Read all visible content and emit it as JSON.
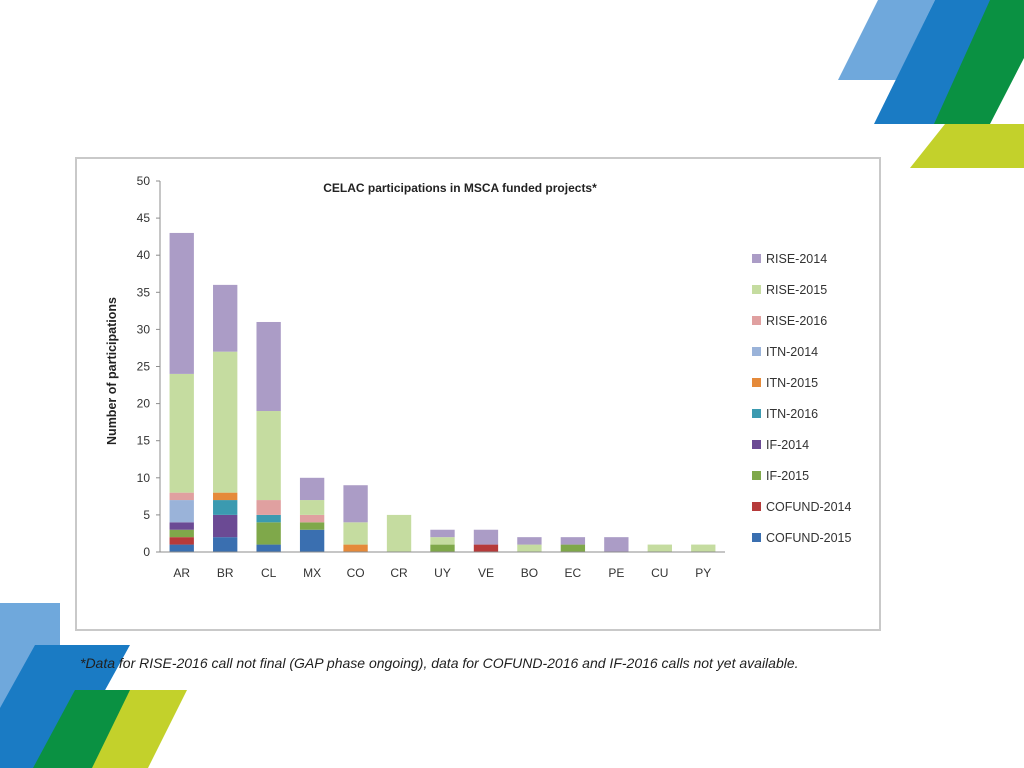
{
  "chart_data": {
    "type": "bar",
    "stacked": true,
    "title": "CELAC participations in MSCA funded projects*",
    "xlabel": "",
    "ylabel": "Number of participations",
    "ylim": [
      0,
      50
    ],
    "yticks": [
      "0",
      "5",
      "10",
      "15",
      "20",
      "25",
      "30",
      "35",
      "40",
      "45",
      "50"
    ],
    "grid": false,
    "legend_position": "right",
    "categories": [
      "AR",
      "BR",
      "CL",
      "MX",
      "CO",
      "CR",
      "UY",
      "VE",
      "BO",
      "EC",
      "PE",
      "CU",
      "PY"
    ],
    "series": [
      {
        "name": "COFUND-2015",
        "color": "#3a6fb0",
        "values": [
          1,
          2,
          1,
          3,
          0,
          0,
          0,
          0,
          0,
          0,
          0,
          0,
          0
        ]
      },
      {
        "name": "COFUND-2014",
        "color": "#b63a3a",
        "values": [
          1,
          0,
          0,
          0,
          0,
          0,
          0,
          1,
          0,
          0,
          0,
          0,
          0
        ]
      },
      {
        "name": "IF-2015",
        "color": "#7fa84a",
        "values": [
          1,
          0,
          3,
          1,
          0,
          0,
          1,
          0,
          0,
          1,
          0,
          0,
          0
        ]
      },
      {
        "name": "IF-2014",
        "color": "#6b4a94",
        "values": [
          1,
          3,
          0,
          0,
          0,
          0,
          0,
          0,
          0,
          0,
          0,
          0,
          0
        ]
      },
      {
        "name": "ITN-2016",
        "color": "#3b9ab0",
        "values": [
          0,
          2,
          1,
          0,
          0,
          0,
          0,
          0,
          0,
          0,
          0,
          0,
          0
        ]
      },
      {
        "name": "ITN-2015",
        "color": "#e58a3a",
        "values": [
          0,
          1,
          0,
          0,
          1,
          0,
          0,
          0,
          0,
          0,
          0,
          0,
          0
        ]
      },
      {
        "name": "ITN-2014",
        "color": "#9ab3d9",
        "values": [
          3,
          0,
          0,
          0,
          0,
          0,
          0,
          0,
          0,
          0,
          0,
          0,
          0
        ]
      },
      {
        "name": "RISE-2016",
        "color": "#e0a0a0",
        "values": [
          1,
          0,
          2,
          1,
          0,
          0,
          0,
          0,
          0,
          0,
          0,
          0,
          0
        ]
      },
      {
        "name": "RISE-2015",
        "color": "#c5dca0",
        "values": [
          16,
          19,
          12,
          2,
          3,
          5,
          1,
          0,
          1,
          0,
          0,
          1,
          1
        ]
      },
      {
        "name": "RISE-2014",
        "color": "#ab9cc6",
        "values": [
          19,
          9,
          12,
          3,
          5,
          0,
          1,
          2,
          1,
          1,
          2,
          0,
          0
        ]
      }
    ]
  },
  "footnote": "*Data for RISE-2016 call not final (GAP phase ongoing), data for COFUND-2016 and IF-2016 calls not yet available.",
  "colors": {
    "light_blue": "#6fa8dc",
    "blue": "#1a7bc4",
    "green": "#0a9142",
    "lime": "#c3d12b"
  }
}
